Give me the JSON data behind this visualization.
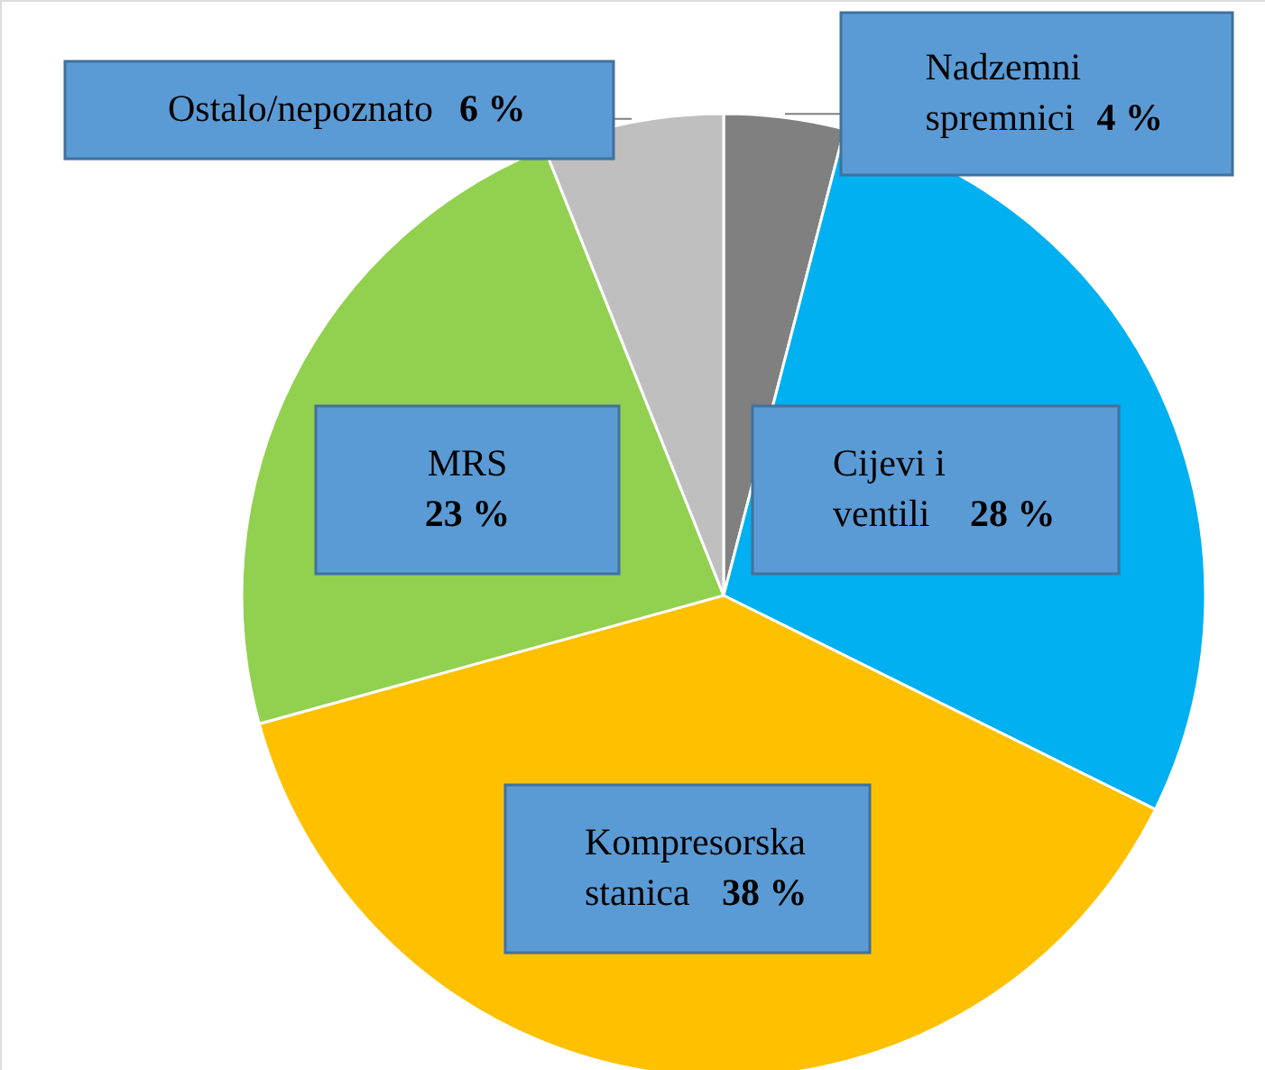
{
  "chart_data": {
    "type": "pie",
    "categories": [
      "Nadzemni spremnici",
      "Cijevi i ventili",
      "Kompresorska stanica",
      "MRS",
      "Ostalo/nepoznato"
    ],
    "values": [
      4,
      28,
      38,
      23,
      6
    ],
    "colors": [
      "#808080",
      "#00b0f0",
      "#ffc000",
      "#92d050",
      "#bfbfbf"
    ],
    "value_labels": [
      "4 %",
      "28 %",
      "38 %",
      "23 %",
      "6 %"
    ]
  }
}
